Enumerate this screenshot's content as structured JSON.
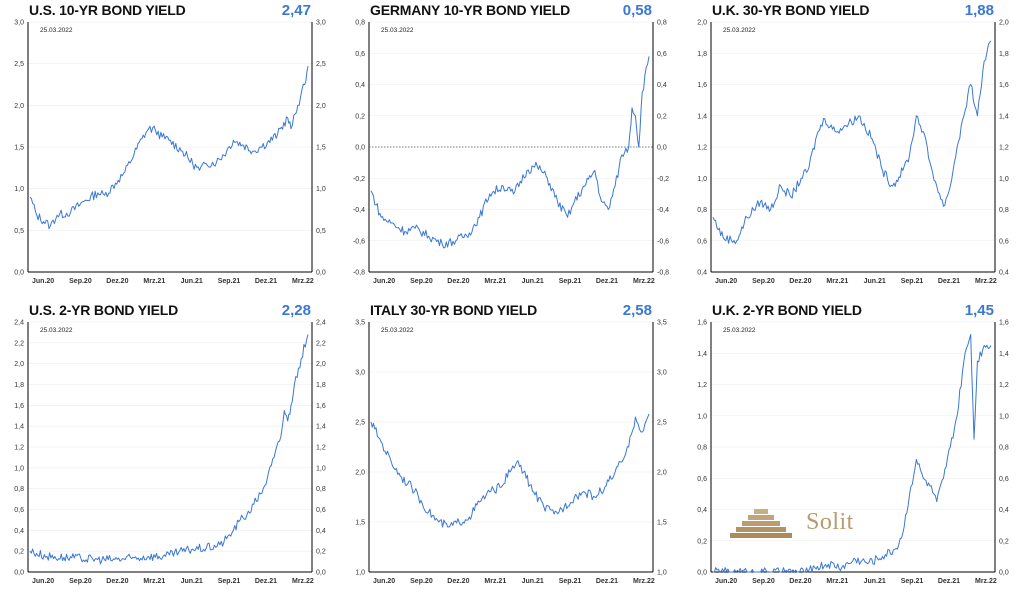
{
  "brand": {
    "name": "Solit",
    "color": "#b99a6e"
  },
  "colors": {
    "line": "#3a78d4",
    "value": "#3a78d4",
    "axis": "#000000"
  },
  "chart_data": [
    {
      "type": "line",
      "title": "U.S. 10-YR BOND YIELD",
      "current_value": "2,47",
      "date": "25.03.2022",
      "ylim": [
        0,
        3
      ],
      "yticks": [
        "0,0",
        "0,5",
        "1,0",
        "1,5",
        "2,0",
        "2,5",
        "3,0"
      ],
      "xticks": [
        "Jun.20",
        "Sep.20",
        "Dez.20",
        "Mrz.21",
        "Jun.21",
        "Sep.21",
        "Dez.21",
        "Mrz.22"
      ],
      "zero_line": false,
      "series": [
        {
          "points": [
            [
              0,
              0.9
            ],
            [
              2,
              0.68
            ],
            [
              6,
              0.55
            ],
            [
              8,
              0.68
            ],
            [
              12,
              0.72
            ],
            [
              16,
              0.85
            ],
            [
              20,
              0.95
            ],
            [
              22,
              0.92
            ],
            [
              26,
              1.1
            ],
            [
              28,
              1.2
            ],
            [
              33,
              1.6
            ],
            [
              35,
              1.72
            ],
            [
              37,
              1.7
            ],
            [
              39,
              1.62
            ],
            [
              41,
              1.58
            ],
            [
              45,
              1.45
            ],
            [
              48,
              1.3
            ],
            [
              50,
              1.22
            ],
            [
              52,
              1.3
            ],
            [
              55,
              1.32
            ],
            [
              58,
              1.45
            ],
            [
              60,
              1.58
            ],
            [
              63,
              1.52
            ],
            [
              66,
              1.45
            ],
            [
              68,
              1.5
            ],
            [
              70,
              1.55
            ],
            [
              73,
              1.65
            ],
            [
              76,
              1.85
            ],
            [
              77,
              1.72
            ],
            [
              79,
              2.0
            ],
            [
              81,
              2.25
            ],
            [
              82,
              2.47
            ]
          ]
        }
      ]
    },
    {
      "type": "line",
      "title": "GERMANY 10-YR BOND YIELD",
      "current_value": "0,58",
      "date": "25.03.2022",
      "ylim": [
        -0.8,
        0.8
      ],
      "yticks": [
        "-0,8",
        "-0,6",
        "-0,4",
        "-0,2",
        "0,0",
        "0,2",
        "0,4",
        "0,6",
        "0,8"
      ],
      "xticks": [
        "Jun.20",
        "Sep.20",
        "Dez.20",
        "Mrz.21",
        "Jun.21",
        "Sep.21",
        "Dez.21",
        "Mrz.22"
      ],
      "zero_line": true,
      "series": [
        {
          "points": [
            [
              0,
              -0.28
            ],
            [
              3,
              -0.45
            ],
            [
              7,
              -0.5
            ],
            [
              10,
              -0.54
            ],
            [
              13,
              -0.52
            ],
            [
              17,
              -0.57
            ],
            [
              21,
              -0.62
            ],
            [
              25,
              -0.6
            ],
            [
              29,
              -0.55
            ],
            [
              32,
              -0.45
            ],
            [
              35,
              -0.3
            ],
            [
              39,
              -0.25
            ],
            [
              42,
              -0.3
            ],
            [
              46,
              -0.15
            ],
            [
              49,
              -0.12
            ],
            [
              52,
              -0.2
            ],
            [
              55,
              -0.35
            ],
            [
              58,
              -0.45
            ],
            [
              60,
              -0.35
            ],
            [
              63,
              -0.25
            ],
            [
              66,
              -0.15
            ],
            [
              68,
              -0.35
            ],
            [
              70,
              -0.4
            ],
            [
              72,
              -0.25
            ],
            [
              74,
              -0.05
            ],
            [
              76,
              0.0
            ],
            [
              77,
              0.25
            ],
            [
              78,
              0.2
            ],
            [
              79,
              0.0
            ],
            [
              80,
              0.35
            ],
            [
              82,
              0.58
            ]
          ]
        }
      ]
    },
    {
      "type": "line",
      "title": "U.K. 30-YR BOND YIELD",
      "current_value": "1,88",
      "date": "25.03.2022",
      "ylim": [
        0.4,
        2.0
      ],
      "yticks": [
        "0,4",
        "0,6",
        "0,8",
        "1,0",
        "1,2",
        "1,4",
        "1,6",
        "1,8",
        "2,0"
      ],
      "xticks": [
        "Jun.20",
        "Sep.20",
        "Dez.20",
        "Mrz.21",
        "Jun.21",
        "Sep.21",
        "Dez.21",
        "Mrz.22"
      ],
      "zero_line": false,
      "series": [
        {
          "points": [
            [
              0,
              0.75
            ],
            [
              3,
              0.62
            ],
            [
              7,
              0.6
            ],
            [
              10,
              0.75
            ],
            [
              14,
              0.85
            ],
            [
              17,
              0.8
            ],
            [
              20,
              0.95
            ],
            [
              23,
              0.88
            ],
            [
              26,
              1.0
            ],
            [
              28,
              1.05
            ],
            [
              31,
              1.3
            ],
            [
              33,
              1.38
            ],
            [
              36,
              1.3
            ],
            [
              40,
              1.35
            ],
            [
              43,
              1.4
            ],
            [
              47,
              1.25
            ],
            [
              50,
              1.05
            ],
            [
              53,
              0.95
            ],
            [
              56,
              1.05
            ],
            [
              58,
              1.15
            ],
            [
              60,
              1.4
            ],
            [
              62,
              1.3
            ],
            [
              64,
              1.1
            ],
            [
              66,
              0.95
            ],
            [
              68,
              0.82
            ],
            [
              70,
              0.95
            ],
            [
              72,
              1.2
            ],
            [
              74,
              1.4
            ],
            [
              76,
              1.6
            ],
            [
              78,
              1.4
            ],
            [
              80,
              1.75
            ],
            [
              82,
              1.88
            ]
          ]
        }
      ]
    },
    {
      "type": "line",
      "title": "U.S. 2-YR BOND YIELD",
      "current_value": "2,28",
      "date": "25.03.2022",
      "ylim": [
        0,
        2.4
      ],
      "yticks": [
        "0,0",
        "0,2",
        "0,4",
        "0,6",
        "0,8",
        "1,0",
        "1,2",
        "1,4",
        "1,6",
        "1,8",
        "2,0",
        "2,2",
        "2,4"
      ],
      "xticks": [
        "Jun.20",
        "Sep.20",
        "Dez.20",
        "Mrz.21",
        "Jun.21",
        "Sep.21",
        "Dez.21",
        "Mrz.22"
      ],
      "zero_line": false,
      "series": [
        {
          "points": [
            [
              0,
              0.2
            ],
            [
              5,
              0.15
            ],
            [
              10,
              0.14
            ],
            [
              15,
              0.13
            ],
            [
              20,
              0.12
            ],
            [
              25,
              0.12
            ],
            [
              30,
              0.13
            ],
            [
              35,
              0.15
            ],
            [
              40,
              0.15
            ],
            [
              45,
              0.2
            ],
            [
              48,
              0.22
            ],
            [
              52,
              0.23
            ],
            [
              56,
              0.26
            ],
            [
              58,
              0.32
            ],
            [
              60,
              0.4
            ],
            [
              62,
              0.5
            ],
            [
              64,
              0.55
            ],
            [
              66,
              0.65
            ],
            [
              68,
              0.75
            ],
            [
              70,
              0.9
            ],
            [
              72,
              1.1
            ],
            [
              74,
              1.3
            ],
            [
              75,
              1.55
            ],
            [
              76,
              1.45
            ],
            [
              77,
              1.6
            ],
            [
              78,
              1.8
            ],
            [
              80,
              2.05
            ],
            [
              82,
              2.28
            ]
          ]
        }
      ]
    },
    {
      "type": "line",
      "title": "ITALY 30-YR BOND YIELD",
      "current_value": "2,58",
      "date": "25.03.2022",
      "ylim": [
        1.0,
        3.5
      ],
      "yticks": [
        "1,0",
        "1,5",
        "2,0",
        "2,5",
        "3,0",
        "3,5"
      ],
      "xticks": [
        "Jun.20",
        "Sep.20",
        "Dez.20",
        "Mrz.21",
        "Jun.21",
        "Sep.21",
        "Dez.21",
        "Mrz.22"
      ],
      "zero_line": false,
      "series": [
        {
          "points": [
            [
              0,
              2.5
            ],
            [
              3,
              2.3
            ],
            [
              6,
              2.1
            ],
            [
              9,
              1.95
            ],
            [
              12,
              1.85
            ],
            [
              14,
              1.75
            ],
            [
              17,
              1.6
            ],
            [
              20,
              1.5
            ],
            [
              23,
              1.45
            ],
            [
              26,
              1.5
            ],
            [
              29,
              1.55
            ],
            [
              32,
              1.7
            ],
            [
              35,
              1.8
            ],
            [
              38,
              1.85
            ],
            [
              41,
              2.0
            ],
            [
              43,
              2.1
            ],
            [
              45,
              2.0
            ],
            [
              48,
              1.8
            ],
            [
              51,
              1.65
            ],
            [
              54,
              1.58
            ],
            [
              57,
              1.65
            ],
            [
              60,
              1.75
            ],
            [
              63,
              1.8
            ],
            [
              66,
              1.75
            ],
            [
              69,
              1.85
            ],
            [
              72,
              2.0
            ],
            [
              74,
              2.1
            ],
            [
              76,
              2.25
            ],
            [
              78,
              2.55
            ],
            [
              80,
              2.4
            ],
            [
              82,
              2.58
            ]
          ]
        }
      ]
    },
    {
      "type": "line",
      "title": "U.K. 2-YR BOND YIELD",
      "current_value": "1,45",
      "date": "25.03.2022",
      "ylim": [
        0,
        1.6
      ],
      "yticks": [
        "0,0",
        "0,2",
        "0,4",
        "0,6",
        "0,8",
        "1,0",
        "1,2",
        "1,4",
        "1,6"
      ],
      "xticks": [
        "Jun.20",
        "Sep.20",
        "Dez.20",
        "Mrz.21",
        "Jun.21",
        "Sep.21",
        "Dez.21",
        "Mrz.22"
      ],
      "zero_line": false,
      "series": [
        {
          "points": [
            [
              0,
              0.0
            ],
            [
              10,
              0.0
            ],
            [
              20,
              0.0
            ],
            [
              28,
              0.0
            ],
            [
              30,
              0.03
            ],
            [
              34,
              0.05
            ],
            [
              38,
              0.03
            ],
            [
              42,
              0.08
            ],
            [
              46,
              0.06
            ],
            [
              50,
              0.1
            ],
            [
              54,
              0.15
            ],
            [
              56,
              0.25
            ],
            [
              58,
              0.5
            ],
            [
              60,
              0.72
            ],
            [
              62,
              0.6
            ],
            [
              64,
              0.55
            ],
            [
              66,
              0.45
            ],
            [
              68,
              0.6
            ],
            [
              70,
              0.8
            ],
            [
              72,
              1.0
            ],
            [
              74,
              1.35
            ],
            [
              76,
              1.52
            ],
            [
              77,
              0.85
            ],
            [
              78,
              1.35
            ],
            [
              80,
              1.45
            ],
            [
              82,
              1.45
            ]
          ]
        }
      ]
    }
  ]
}
